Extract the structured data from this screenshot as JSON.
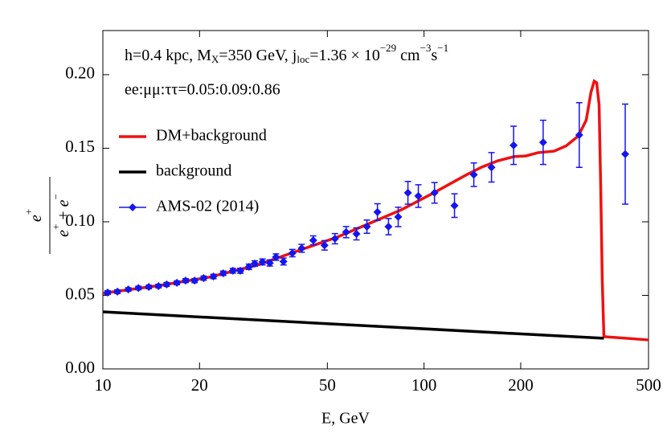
{
  "chart_data": {
    "type": "line",
    "annotations": [
      [
        "h=0.4 kpc, M",
        "X",
        "=350 GeV, j",
        "loc",
        "=1.36 × 10",
        "−29",
        " cm",
        "−3",
        "s",
        "−1"
      ],
      [
        "ee:μμ:ττ=0.05:0.09:0.86"
      ]
    ],
    "x_label": "E, GeV",
    "y_label": {
      "numerator": [
        "e",
        "+"
      ],
      "denominator": [
        "e",
        "+",
        " + ",
        "e",
        "−"
      ]
    },
    "x_log": true,
    "xlim": [
      10,
      500
    ],
    "xticks": [
      10,
      20,
      50,
      100,
      200,
      500
    ],
    "ylim": [
      0,
      0.23
    ],
    "yticks": [
      {
        "value": 0,
        "label": "0.00"
      },
      {
        "value": 0.05,
        "label": "0.05"
      },
      {
        "value": 0.1,
        "label": "0.10"
      },
      {
        "value": 0.15,
        "label": "0.15"
      },
      {
        "value": 0.2,
        "label": "0.20"
      }
    ],
    "legend": "upper left",
    "series": [
      {
        "name": "DM+background",
        "color": "#ee1111",
        "style": "line",
        "x": [
          10,
          15.14,
          21.38,
          30.2,
          42.66,
          53.7,
          67.6,
          85.1,
          107.2,
          134.9,
          151.4,
          169.8,
          190.5,
          207.7,
          226.5,
          254.1,
          277.0,
          302.0,
          319.9,
          331.1,
          338.8,
          344.7,
          350.8,
          354.8,
          358.9,
          363.1,
          500
        ],
        "values": [
          0.0514,
          0.0568,
          0.0623,
          0.0705,
          0.082,
          0.0896,
          0.0989,
          0.1082,
          0.1197,
          0.1317,
          0.1372,
          0.1415,
          0.1443,
          0.1448,
          0.147,
          0.148,
          0.1516,
          0.1582,
          0.1691,
          0.1882,
          0.1956,
          0.1945,
          0.1798,
          0.1251,
          0.0601,
          0.0219,
          0.0197
        ]
      },
      {
        "name": "background",
        "color": "#000000",
        "style": "line",
        "x": [
          10,
          363.1
        ],
        "values": [
          0.0388,
          0.0208
        ]
      },
      {
        "name": "AMS-02 (2014)",
        "color": "#1515ee",
        "style": "points",
        "x": [
          10.35,
          11.1,
          12.0,
          12.9,
          13.9,
          14.9,
          15.8,
          17.0,
          18.1,
          19.3,
          20.6,
          22.1,
          23.7,
          25.4,
          26.8,
          28.5,
          29.7,
          31.4,
          33.1,
          34.6,
          36.5,
          38.9,
          41.6,
          45.2,
          49.0,
          52.8,
          57.2,
          61.6,
          66.4,
          71.6,
          77.5,
          83.1,
          89.1,
          96.0,
          107.8,
          124.4,
          142.9,
          162.2,
          190.1,
          234.9,
          304.3,
          423.1
        ],
        "values": [
          0.0519,
          0.0525,
          0.054,
          0.055,
          0.0557,
          0.0563,
          0.0574,
          0.0585,
          0.06,
          0.06,
          0.0617,
          0.0628,
          0.065,
          0.0667,
          0.0667,
          0.0694,
          0.0716,
          0.0727,
          0.072,
          0.076,
          0.073,
          0.0787,
          0.082,
          0.0874,
          0.084,
          0.0885,
          0.093,
          0.0918,
          0.0967,
          0.1066,
          0.0967,
          0.1033,
          0.1197,
          0.1175,
          0.1197,
          0.111,
          0.132,
          0.137,
          0.152,
          0.154,
          0.159,
          0.146
        ],
        "errors": [
          0.0012,
          0.0012,
          0.0012,
          0.0012,
          0.0012,
          0.0012,
          0.0013,
          0.0013,
          0.0013,
          0.0014,
          0.0014,
          0.0015,
          0.0015,
          0.0016,
          0.0017,
          0.0018,
          0.0019,
          0.002,
          0.0021,
          0.0022,
          0.0023,
          0.0025,
          0.0027,
          0.003,
          0.0032,
          0.0035,
          0.0038,
          0.0041,
          0.0045,
          0.0057,
          0.0055,
          0.0066,
          0.0077,
          0.0077,
          0.007,
          0.008,
          0.008,
          0.01,
          0.013,
          0.015,
          0.022,
          0.034
        ]
      }
    ]
  }
}
